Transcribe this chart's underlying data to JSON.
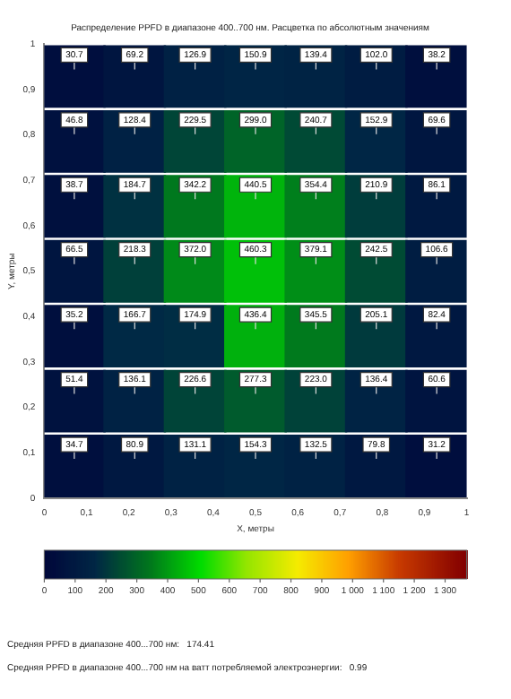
{
  "chart_data": {
    "type": "scatter",
    "title": "Распределение PPFD в диапазоне 400..700 нм. Расцветка по абсолютным значениям",
    "xlabel": "X, метры",
    "ylabel": "Y, метры",
    "xlim": [
      0,
      1
    ],
    "ylim": [
      0,
      1
    ],
    "xticks": [
      0,
      {
        "value": 0.1,
        "label": "0,1"
      },
      {
        "value": 0.2,
        "label": "0,2"
      },
      {
        "value": 0.3,
        "label": "0,3"
      },
      {
        "value": 0.4,
        "label": "0,4"
      },
      {
        "value": 0.5,
        "label": "0,5"
      },
      {
        "value": 0.6,
        "label": "0,6"
      },
      {
        "value": 0.7,
        "label": "0,7"
      },
      {
        "value": 0.8,
        "label": "0,8"
      },
      {
        "value": 0.9,
        "label": "0,9"
      },
      1
    ],
    "yticks": [
      0,
      {
        "value": 0.1,
        "label": "0,1"
      },
      {
        "value": 0.2,
        "label": "0,2"
      },
      {
        "value": 0.3,
        "label": "0,3"
      },
      {
        "value": 0.4,
        "label": "0,4"
      },
      {
        "value": 0.5,
        "label": "0,5"
      },
      {
        "value": 0.6,
        "label": "0,6"
      },
      {
        "value": 0.7,
        "label": "0,7"
      },
      {
        "value": 0.8,
        "label": "0,8"
      },
      {
        "value": 0.9,
        "label": "0,9"
      },
      1
    ],
    "x": [
      0.071,
      0.214,
      0.357,
      0.5,
      0.643,
      0.786,
      0.929,
      0.071,
      0.214,
      0.357,
      0.5,
      0.643,
      0.786,
      0.929,
      0.071,
      0.214,
      0.357,
      0.5,
      0.643,
      0.786,
      0.929,
      0.071,
      0.214,
      0.357,
      0.5,
      0.643,
      0.786,
      0.929,
      0.071,
      0.214,
      0.357,
      0.5,
      0.643,
      0.786,
      0.929,
      0.071,
      0.214,
      0.357,
      0.5,
      0.643,
      0.786,
      0.929,
      0.071,
      0.214,
      0.357,
      0.5,
      0.643,
      0.786,
      0.929
    ],
    "values": [
      0.929,
      0.929,
      0.929,
      0.929,
      0.929,
      0.929,
      0.929,
      0.786,
      0.786,
      0.786,
      0.786,
      0.786,
      0.786,
      0.786,
      0.643,
      0.643,
      0.643,
      0.643,
      0.643,
      0.643,
      0.643,
      0.5,
      0.5,
      0.5,
      0.5,
      0.5,
      0.5,
      0.5,
      0.357,
      0.357,
      0.357,
      0.357,
      0.357,
      0.357,
      0.357,
      0.214,
      0.214,
      0.214,
      0.214,
      0.214,
      0.214,
      0.214,
      0.071,
      0.071,
      0.071,
      0.071,
      0.071,
      0.071,
      0.071
    ],
    "cvalues": [
      30.7,
      69.2,
      126.9,
      150.9,
      139.4,
      102.0,
      38.2,
      46.8,
      128.4,
      229.5,
      299.0,
      240.7,
      152.9,
      69.6,
      38.7,
      184.7,
      342.2,
      440.5,
      354.4,
      210.9,
      86.1,
      66.5,
      218.3,
      372.0,
      460.3,
      379.1,
      242.5,
      106.6,
      35.2,
      166.7,
      174.9,
      436.4,
      345.5,
      205.1,
      82.4,
      51.4,
      136.1,
      226.6,
      277.3,
      223.0,
      136.4,
      60.6,
      34.7,
      80.9,
      131.1,
      154.3,
      132.5,
      79.8,
      31.2
    ],
    "marker": "square",
    "grid": false,
    "clim": [
      0,
      1370
    ],
    "cticks": [
      0,
      100,
      200,
      300,
      400,
      500,
      600,
      700,
      800,
      900,
      {
        "value": 1000,
        "label": "1 000"
      },
      {
        "value": 1100,
        "label": "1 100"
      },
      {
        "value": 1200,
        "label": "1 200"
      },
      {
        "value": 1300,
        "label": "1 300"
      }
    ],
    "annotations": [
      {
        "text": "30.7",
        "x": 0.071,
        "y": 0.929
      },
      {
        "text": "69.2",
        "x": 0.214,
        "y": 0.929
      },
      {
        "text": "126.9",
        "x": 0.357,
        "y": 0.929
      },
      {
        "text": "150.9",
        "x": 0.5,
        "y": 0.929
      },
      {
        "text": "139.4",
        "x": 0.643,
        "y": 0.929
      },
      {
        "text": "102.0",
        "x": 0.786,
        "y": 0.929
      },
      {
        "text": "38.2",
        "x": 0.929,
        "y": 0.929
      },
      {
        "text": "46.8",
        "x": 0.071,
        "y": 0.786
      },
      {
        "text": "128.4",
        "x": 0.214,
        "y": 0.786
      },
      {
        "text": "229.5",
        "x": 0.357,
        "y": 0.786
      },
      {
        "text": "299.0",
        "x": 0.5,
        "y": 0.786
      },
      {
        "text": "240.7",
        "x": 0.643,
        "y": 0.786
      },
      {
        "text": "152.9",
        "x": 0.786,
        "y": 0.786
      },
      {
        "text": "69.6",
        "x": 0.929,
        "y": 0.786
      },
      {
        "text": "38.7",
        "x": 0.071,
        "y": 0.643
      },
      {
        "text": "184.7",
        "x": 0.214,
        "y": 0.643
      },
      {
        "text": "342.2",
        "x": 0.357,
        "y": 0.643
      },
      {
        "text": "440.5",
        "x": 0.5,
        "y": 0.643
      },
      {
        "text": "354.4",
        "x": 0.643,
        "y": 0.643
      },
      {
        "text": "210.9",
        "x": 0.786,
        "y": 0.643
      },
      {
        "text": "86.1",
        "x": 0.929,
        "y": 0.643
      },
      {
        "text": "66.5",
        "x": 0.071,
        "y": 0.5
      },
      {
        "text": "218.3",
        "x": 0.214,
        "y": 0.5
      },
      {
        "text": "372.0",
        "x": 0.357,
        "y": 0.5
      },
      {
        "text": "460.3",
        "x": 0.5,
        "y": 0.5
      },
      {
        "text": "379.1",
        "x": 0.643,
        "y": 0.5
      },
      {
        "text": "242.5",
        "x": 0.786,
        "y": 0.5
      },
      {
        "text": "106.6",
        "x": 0.929,
        "y": 0.5
      },
      {
        "text": "35.2",
        "x": 0.071,
        "y": 0.357
      },
      {
        "text": "166.7",
        "x": 0.214,
        "y": 0.357
      },
      {
        "text": "174.9",
        "x": 0.357,
        "y": 0.357
      },
      {
        "text": "436.4",
        "x": 0.5,
        "y": 0.357
      },
      {
        "text": "345.5",
        "x": 0.643,
        "y": 0.357
      },
      {
        "text": "205.1",
        "x": 0.786,
        "y": 0.357
      },
      {
        "text": "82.4",
        "x": 0.929,
        "y": 0.357
      },
      {
        "text": "51.4",
        "x": 0.071,
        "y": 0.214
      },
      {
        "text": "136.1",
        "x": 0.214,
        "y": 0.214
      },
      {
        "text": "226.6",
        "x": 0.357,
        "y": 0.214
      },
      {
        "text": "277.3",
        "x": 0.5,
        "y": 0.214
      },
      {
        "text": "223.0",
        "x": 0.643,
        "y": 0.214
      },
      {
        "text": "136.4",
        "x": 0.786,
        "y": 0.214
      },
      {
        "text": "60.6",
        "x": 0.929,
        "y": 0.214
      },
      {
        "text": "34.7",
        "x": 0.071,
        "y": 0.071
      },
      {
        "text": "80.9",
        "x": 0.214,
        "y": 0.071
      },
      {
        "text": "131.1",
        "x": 0.357,
        "y": 0.071
      },
      {
        "text": "154.3",
        "x": 0.5,
        "y": 0.071
      },
      {
        "text": "132.5",
        "x": 0.643,
        "y": 0.071
      },
      {
        "text": "79.8",
        "x": 0.786,
        "y": 0.071
      },
      {
        "text": "31.2",
        "x": 0.929,
        "y": 0.071
      },
      "Средняя PPFD в диапазоне 400...700 нм:   174.41",
      "Средняя PPFD в диапазоне 400...700 нм на ватт потребляемой электроэнергии:   0.99"
    ]
  }
}
